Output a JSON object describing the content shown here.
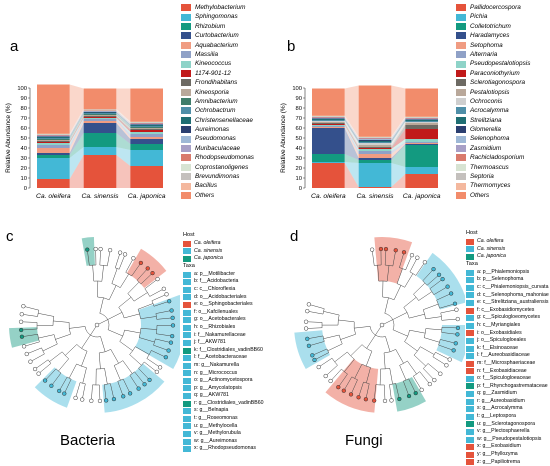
{
  "panel_a": {
    "letter": "a",
    "ylabel": "Relative Abundance (%)",
    "yticks": [
      "0",
      "10",
      "20",
      "30",
      "40",
      "50",
      "60",
      "70",
      "80",
      "90",
      "100"
    ],
    "legend": [
      {
        "name": "Methylobacterium",
        "color": "#e5533b"
      },
      {
        "name": "Sphingomonas",
        "color": "#43b8d6"
      },
      {
        "name": "Rhizobium",
        "color": "#139a80"
      },
      {
        "name": "Curtobacterium",
        "color": "#34508c"
      },
      {
        "name": "Aquabacterium",
        "color": "#f09c82"
      },
      {
        "name": "Massilia",
        "color": "#8fa1c7"
      },
      {
        "name": "Kineococcus",
        "color": "#8ed3c8"
      },
      {
        "name": "1174-901-12",
        "color": "#c11a1a"
      },
      {
        "name": "Frondihabitans",
        "color": "#6d6a63"
      },
      {
        "name": "Kineosporia",
        "color": "#b9a89a"
      },
      {
        "name": "Amnibacterium",
        "color": "#3f7d6a"
      },
      {
        "name": "Ochrobactrum",
        "color": "#4f8fa8"
      },
      {
        "name": "Christensenellaceae",
        "color": "#1f6e73"
      },
      {
        "name": "Aureimonas",
        "color": "#2b3f70"
      },
      {
        "name": "Pseudomonas",
        "color": "#9eb8d6"
      },
      {
        "name": "Muribaculaceae",
        "color": "#a79fc6"
      },
      {
        "name": "Rhodopseudomonas",
        "color": "#d97a6c"
      },
      {
        "name": "Coprostanoligenes",
        "color": "#d7e3d2"
      },
      {
        "name": "Brevundimonas",
        "color": "#c4c0bd"
      },
      {
        "name": "Bacillus",
        "color": "#f4b89e"
      },
      {
        "name": "Others",
        "color": "#f28c6b"
      }
    ]
  },
  "panel_b": {
    "letter": "b",
    "ylabel": "Relative Abundance (%)",
    "yticks": [
      "0",
      "10",
      "20",
      "30",
      "40",
      "50",
      "60",
      "70",
      "80",
      "90",
      "100"
    ],
    "legend": [
      {
        "name": "Pallidocercospora",
        "color": "#e5533b"
      },
      {
        "name": "Pichia",
        "color": "#43b8d6"
      },
      {
        "name": "Colletotrichum",
        "color": "#139a80"
      },
      {
        "name": "Haradamyces",
        "color": "#34508c"
      },
      {
        "name": "Setophoma",
        "color": "#f09c82"
      },
      {
        "name": "Alternaria",
        "color": "#8fa1c7"
      },
      {
        "name": "Pseudopestalotiopsis",
        "color": "#8ed3c8"
      },
      {
        "name": "Paraconiothyrium",
        "color": "#c11a1a"
      },
      {
        "name": "Sclerotiagonospora",
        "color": "#6d6a63"
      },
      {
        "name": "Pestalotiopsis",
        "color": "#b9a89a"
      },
      {
        "name": "Ochroconis",
        "color": "#cfcfcf"
      },
      {
        "name": "Acrocalymma",
        "color": "#4f8fa8"
      },
      {
        "name": "Strelitziana",
        "color": "#1f6e73"
      },
      {
        "name": "Glomerella",
        "color": "#2b3f70"
      },
      {
        "name": "Selenophoma",
        "color": "#9eb8d6"
      },
      {
        "name": "Zasmidium",
        "color": "#a79fc6"
      },
      {
        "name": "Rachicladosporium",
        "color": "#d97a6c"
      },
      {
        "name": "Thermoascus",
        "color": "#d7e3d2"
      },
      {
        "name": "Septoria",
        "color": "#c4c0bd"
      },
      {
        "name": "Thermomyces",
        "color": "#f4b89e"
      },
      {
        "name": "Others",
        "color": "#f28c6b"
      }
    ]
  },
  "chart_data": [
    {
      "type": "bar",
      "id": "a",
      "stacked": true,
      "categories": [
        "Ca. oleifera",
        "Ca. sinensis",
        "Ca. japonica"
      ],
      "ylabel": "Relative Abundance (%)",
      "ylim": [
        0,
        100
      ],
      "series": [
        {
          "name": "Methylobacterium",
          "values": [
            9,
            33,
            22
          ]
        },
        {
          "name": "Sphingomonas",
          "values": [
            21,
            8,
            16
          ]
        },
        {
          "name": "Rhizobium",
          "values": [
            3,
            14,
            6
          ]
        },
        {
          "name": "Curtobacterium",
          "values": [
            2,
            10,
            5
          ]
        },
        {
          "name": "Aquabacterium",
          "values": [
            5,
            2,
            2
          ]
        },
        {
          "name": "Massilia",
          "values": [
            3,
            2,
            3
          ]
        },
        {
          "name": "Kineococcus",
          "values": [
            2,
            1,
            2
          ]
        },
        {
          "name": "1174-901-12",
          "values": [
            1,
            1,
            2
          ]
        },
        {
          "name": "Frondihabitans",
          "values": [
            1,
            1,
            1
          ]
        },
        {
          "name": "Kineosporia",
          "values": [
            1,
            1,
            1
          ]
        },
        {
          "name": "Amnibacterium",
          "values": [
            1,
            1,
            1
          ]
        },
        {
          "name": "Ochrobactrum",
          "values": [
            1,
            1,
            1
          ]
        },
        {
          "name": "Christensenellaceae",
          "values": [
            1,
            0.5,
            1
          ]
        },
        {
          "name": "Aureimonas",
          "values": [
            0.5,
            0.5,
            0.5
          ]
        },
        {
          "name": "Pseudomonas",
          "values": [
            0.5,
            0.5,
            0.5
          ]
        },
        {
          "name": "Muribaculaceae",
          "values": [
            0.5,
            0.5,
            0.5
          ]
        },
        {
          "name": "Rhodopseudomonas",
          "values": [
            0.5,
            0.5,
            0.5
          ]
        },
        {
          "name": "Coprostanoligenes",
          "values": [
            0.5,
            0.5,
            0.5
          ]
        },
        {
          "name": "Brevundimonas",
          "values": [
            0.5,
            0.5,
            0.5
          ]
        },
        {
          "name": "Bacillus",
          "values": [
            0.5,
            0.5,
            0.5
          ]
        },
        {
          "name": "Others",
          "values": [
            49,
            20.5,
            33
          ]
        }
      ]
    },
    {
      "type": "bar",
      "id": "b",
      "stacked": true,
      "categories": [
        "Ca. oleifera",
        "Ca. sinensis",
        "Ca. japonica"
      ],
      "ylabel": "Relative Abundance (%)",
      "ylim": [
        0,
        100
      ],
      "series": [
        {
          "name": "Pallidocercospora",
          "values": [
            25,
            1,
            14
          ]
        },
        {
          "name": "Pichia",
          "values": [
            1,
            24,
            7
          ]
        },
        {
          "name": "Colletotrichum",
          "values": [
            8,
            3,
            22
          ]
        },
        {
          "name": "Haradamyces",
          "values": [
            26,
            2,
            1
          ]
        },
        {
          "name": "Setophoma",
          "values": [
            1,
            4,
            1
          ]
        },
        {
          "name": "Alternaria",
          "values": [
            1,
            3,
            1
          ]
        },
        {
          "name": "Pseudopestalotiopsis",
          "values": [
            1,
            2,
            3
          ]
        },
        {
          "name": "Paraconiothyrium",
          "values": [
            1,
            1,
            10
          ]
        },
        {
          "name": "Sclerotiagonospora",
          "values": [
            1,
            1,
            4
          ]
        },
        {
          "name": "Pestalotiopsis",
          "values": [
            1,
            2,
            2
          ]
        },
        {
          "name": "Ochroconis",
          "values": [
            1,
            2,
            1
          ]
        },
        {
          "name": "Acrocalymma",
          "values": [
            1,
            1,
            1
          ]
        },
        {
          "name": "Strelitziana",
          "values": [
            1,
            1,
            1
          ]
        },
        {
          "name": "Glomerella",
          "values": [
            0.5,
            1,
            0.5
          ]
        },
        {
          "name": "Selenophoma",
          "values": [
            0.5,
            1,
            0.5
          ]
        },
        {
          "name": "Zasmidium",
          "values": [
            0.5,
            0.5,
            0.5
          ]
        },
        {
          "name": "Rachicladosporium",
          "values": [
            0.5,
            0.5,
            0.5
          ]
        },
        {
          "name": "Thermoascus",
          "values": [
            0.5,
            0.5,
            0.5
          ]
        },
        {
          "name": "Septoria",
          "values": [
            0.5,
            0.5,
            0.5
          ]
        },
        {
          "name": "Thermomyces",
          "values": [
            0.5,
            0.5,
            0.5
          ]
        },
        {
          "name": "Others",
          "values": [
            27,
            51,
            28
          ]
        }
      ]
    }
  ],
  "panel_c": {
    "letter": "c",
    "caption": "Bacteria",
    "host_title": "Host",
    "hosts": [
      {
        "name": "Ca. oleifera",
        "color": "#e5533b"
      },
      {
        "name": "Ca. sinensis",
        "color": "#43b8d6"
      },
      {
        "name": "Ca. japonica",
        "color": "#139a80"
      }
    ],
    "taxa_title": "Taxa",
    "taxa": [
      {
        "label": "a: p__Motilibacter",
        "color": "#43b8d6"
      },
      {
        "label": "b: f__Acidobacteria",
        "color": "#43b8d6"
      },
      {
        "label": "c: c__Chloroflexia",
        "color": "#43b8d6"
      },
      {
        "label": "d: o__Acidobacteriales",
        "color": "#43b8d6"
      },
      {
        "label": "e: o__Sphingobacteriales",
        "color": "#e5533b"
      },
      {
        "label": "f: o__Kafcilenuales",
        "color": "#43b8d6"
      },
      {
        "label": "g: o__Acetobacterales",
        "color": "#43b8d6"
      },
      {
        "label": "h: o__Rhizobiales",
        "color": "#43b8d6"
      },
      {
        "label": "i: f__Nakamurellaceae",
        "color": "#43b8d6"
      },
      {
        "label": "j: f__AKW781",
        "color": "#43b8d6"
      },
      {
        "label": "k: f__Clostridiales_vadinBB60",
        "color": "#139a80"
      },
      {
        "label": "l: f__Acetobacteraceae",
        "color": "#43b8d6"
      },
      {
        "label": "m: g__Nakamurella",
        "color": "#43b8d6"
      },
      {
        "label": "n: g__Micrococcus",
        "color": "#43b8d6"
      },
      {
        "label": "o: g__Actinomycetospora",
        "color": "#43b8d6"
      },
      {
        "label": "p: g__Amycolatopsis",
        "color": "#43b8d6"
      },
      {
        "label": "q: g__AKW781",
        "color": "#43b8d6"
      },
      {
        "label": "r: g__Clostridiales_vadinBB60",
        "color": "#139a80"
      },
      {
        "label": "s: g__Belnapia",
        "color": "#43b8d6"
      },
      {
        "label": "t: g__Roseomonas",
        "color": "#43b8d6"
      },
      {
        "label": "u: g__Methylocella",
        "color": "#43b8d6"
      },
      {
        "label": "v: g__Methylorubula",
        "color": "#43b8d6"
      },
      {
        "label": "w: g__Aureimonas",
        "color": "#43b8d6"
      },
      {
        "label": "x: g__Rhodopseudomonas",
        "color": "#43b8d6"
      }
    ]
  },
  "panel_d": {
    "letter": "d",
    "caption": "Fungi",
    "host_title": "Host",
    "hosts": [
      {
        "name": "Ca. oleifera",
        "color": "#e5533b"
      },
      {
        "name": "Ca. sinensis",
        "color": "#43b8d6"
      },
      {
        "name": "Ca. japonica",
        "color": "#139a80"
      }
    ],
    "taxa_title": "Taxa",
    "taxa": [
      {
        "label": "a: p__Phialemoniopsis",
        "color": "#43b8d6"
      },
      {
        "label": "b: p__Selenophoma",
        "color": "#43b8d6"
      },
      {
        "label": "c: c__Phialemoniopsis_curvata",
        "color": "#43b8d6"
      },
      {
        "label": "d: c__Selenophoma_mahoniae",
        "color": "#43b8d6"
      },
      {
        "label": "e: c__Strelitziana_australiensis",
        "color": "#43b8d6"
      },
      {
        "label": "f: c__Exobasidiomycetes",
        "color": "#e5533b"
      },
      {
        "label": "g: c__Spiculogloeomycetes",
        "color": "#43b8d6"
      },
      {
        "label": "h: c__Myriangiales",
        "color": "#43b8d6"
      },
      {
        "label": "i: o__Exobasidiales",
        "color": "#e5533b"
      },
      {
        "label": "j: o__Spiculogloeales",
        "color": "#43b8d6"
      },
      {
        "label": "k: f__Elsinoaceae",
        "color": "#43b8d6"
      },
      {
        "label": "l: f__Aureobasidiaceae",
        "color": "#43b8d6"
      },
      {
        "label": "m: f__Microsphaeriaceae",
        "color": "#e5533b"
      },
      {
        "label": "n: f__Exobasidiaceae",
        "color": "#e5533b"
      },
      {
        "label": "o: f__Spiculogloeaceae",
        "color": "#43b8d6"
      },
      {
        "label": "p: f__Rhynchogastremataceae",
        "color": "#139a80"
      },
      {
        "label": "q: g__Zasmidium",
        "color": "#43b8d6"
      },
      {
        "label": "r: g__Aureobasidium",
        "color": "#43b8d6"
      },
      {
        "label": "s: g__Acrocalymma",
        "color": "#43b8d6"
      },
      {
        "label": "t: g__Leptospora",
        "color": "#43b8d6"
      },
      {
        "label": "u: g__Sclerotagonospora",
        "color": "#139a80"
      },
      {
        "label": "v: g__Plectosphaerella",
        "color": "#43b8d6"
      },
      {
        "label": "w: g__Pseudopestalotiopsis",
        "color": "#43b8d6"
      },
      {
        "label": "x: g__Exobasidium",
        "color": "#e5533b"
      },
      {
        "label": "y: g__Phyllozyma",
        "color": "#e5533b"
      },
      {
        "label": "z: g__Papiliotrema",
        "color": "#e5533b"
      }
    ]
  }
}
